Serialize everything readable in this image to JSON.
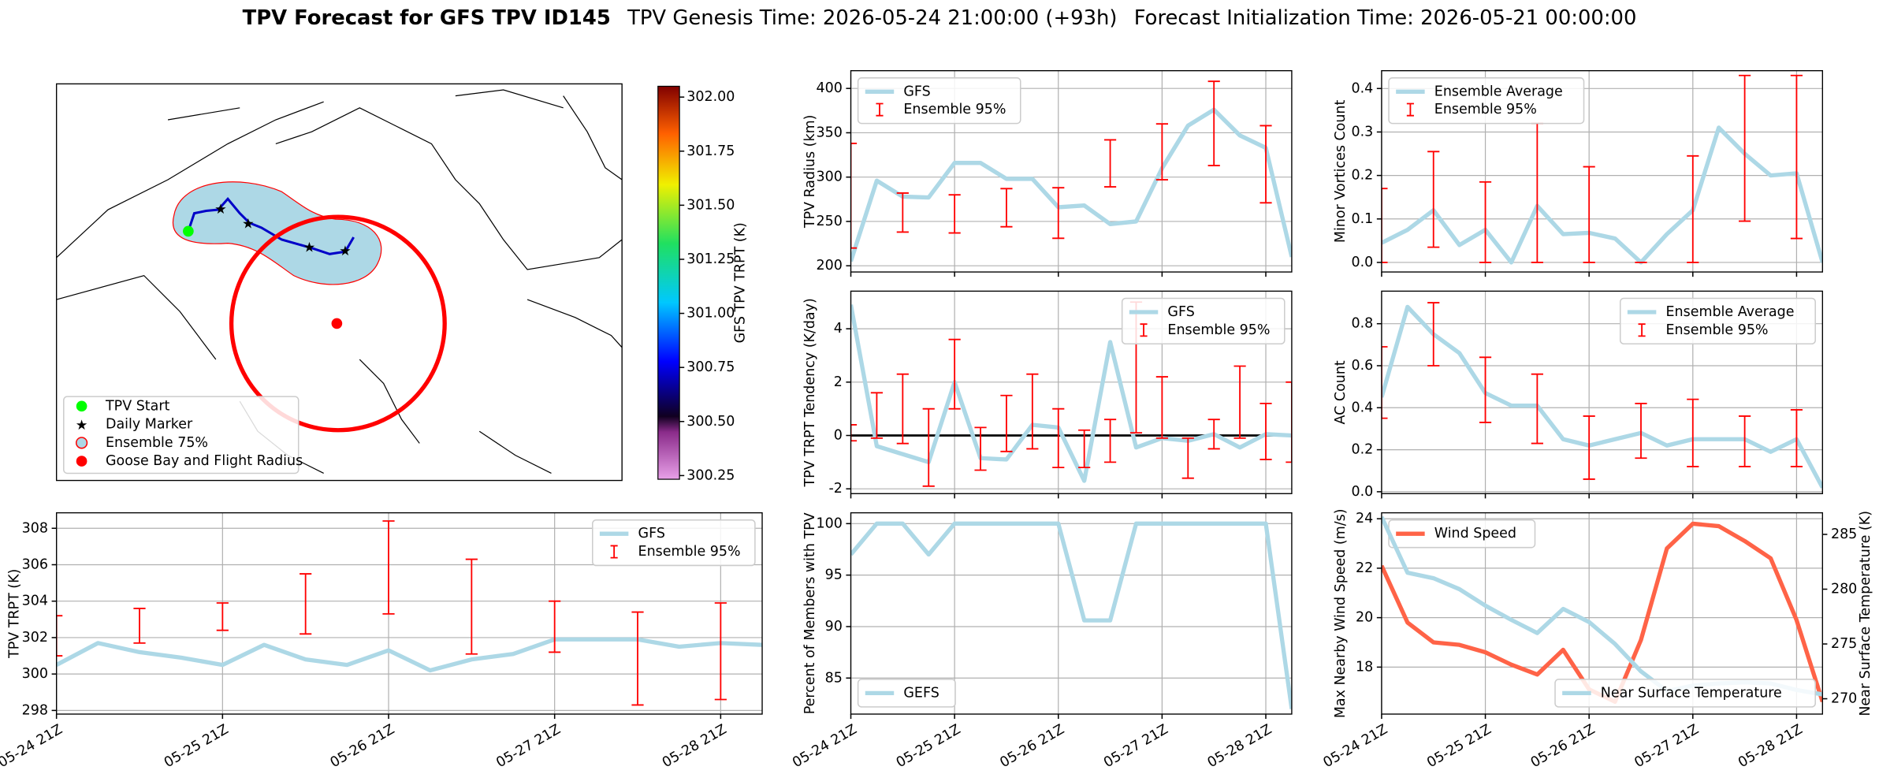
{
  "suptitle": {
    "bold": "TPV Forecast for GFS TPV ID145",
    "genesis": "TPV Genesis Time: 2026-05-24 21:00:00 (+93h)",
    "init": "Forecast Initialization Time: 2026-05-21 00:00:00"
  },
  "chart_data": [
    {
      "type": "map",
      "legend": [
        {
          "name": "TPV Start",
          "color": "#00ff00"
        },
        {
          "name": "Daily Marker",
          "color": "#ff00ff"
        },
        {
          "name": "Ensemble 75%",
          "color": "#add8e6"
        },
        {
          "name": "Goose Bay and Flight Radius",
          "color": "#ff0000"
        }
      ],
      "colorbar": {
        "label": "GFS TPV TRPT (K)",
        "lim": [
          300.233,
          302.05
        ],
        "ticks": [
          300.25,
          {
            "value": 300.5,
            "label": "300.50"
          },
          300.75,
          {
            "value": 301,
            "label": "301.00"
          },
          301.25,
          {
            "value": 301.5,
            "label": "301.50"
          },
          301.75,
          {
            "value": 302,
            "label": "302.00"
          }
        ]
      }
    },
    {
      "type": "line",
      "ylabel": "TPV Radius (km)",
      "categories": [
        "05-24 21Z",
        null,
        null,
        null,
        "05-25 21Z",
        null,
        null,
        null,
        "05-26 21Z",
        null,
        null,
        null,
        "05-27 21Z",
        null,
        null,
        null,
        "05-28 21Z",
        null
      ],
      "xtick_labels": false,
      "ylim": [
        193,
        420
      ],
      "yticks": [
        200,
        250,
        300,
        350,
        400
      ],
      "legend": "upper left",
      "series": [
        {
          "name": "GFS",
          "color": "#add8e6",
          "values": [
            205,
            296,
            278,
            277,
            316,
            316,
            298,
            298,
            266,
            268,
            247,
            250,
            310,
            358,
            376,
            347,
            333,
            210
          ]
        }
      ],
      "error": {
        "name": "Ensemble 95%",
        "color": "#ff0000",
        "low": [
          220,
          null,
          238,
          null,
          237,
          null,
          244,
          null,
          231,
          null,
          289,
          null,
          297,
          null,
          313,
          null,
          271,
          null
        ],
        "high": [
          338,
          null,
          282,
          null,
          280,
          null,
          287,
          null,
          288,
          null,
          342,
          null,
          360,
          null,
          408,
          null,
          358,
          null
        ]
      }
    },
    {
      "type": "line",
      "ylabel": "Minor Vortices Count",
      "categories": [
        "05-24 21Z",
        null,
        null,
        null,
        "05-25 21Z",
        null,
        null,
        null,
        "05-26 21Z",
        null,
        null,
        null,
        "05-27 21Z",
        null,
        null,
        null,
        "05-28 21Z",
        null
      ],
      "xtick_labels": false,
      "ylim": [
        -0.022,
        0.441
      ],
      "yticks": [
        {
          "value": 0,
          "label": "0.0"
        },
        0.1,
        0.2,
        0.3,
        0.4
      ],
      "legend": "upper left",
      "series": [
        {
          "name": "Ensemble Average",
          "color": "#add8e6",
          "values": [
            0.045,
            0.075,
            0.12,
            0.04,
            0.075,
            0.0,
            0.13,
            0.065,
            0.068,
            0.055,
            0.0,
            0.065,
            0.12,
            0.31,
            0.25,
            0.2,
            0.205,
            0.0
          ]
        }
      ],
      "error": {
        "name": "Ensemble 95%",
        "color": "#ff0000",
        "low": [
          0.0,
          null,
          0.035,
          null,
          0.0,
          null,
          0.0,
          null,
          0.0,
          null,
          0.0,
          null,
          0.0,
          null,
          0.095,
          null,
          0.055,
          null
        ],
        "high": [
          0.17,
          null,
          0.255,
          null,
          0.185,
          null,
          0.32,
          null,
          0.22,
          null,
          0.0,
          null,
          0.245,
          null,
          0.43,
          null,
          0.43,
          null
        ]
      }
    },
    {
      "type": "line",
      "ylabel": "TPV TRPT Tendency (K/day)",
      "categories": [
        "05-24 21Z",
        null,
        null,
        null,
        "05-25 21Z",
        null,
        null,
        null,
        "05-26 21Z",
        null,
        null,
        null,
        "05-27 21Z",
        null,
        null,
        null,
        "05-28 21Z",
        null
      ],
      "xtick_labels": false,
      "ylim": [
        -2.18,
        5.41
      ],
      "yticks": [
        -2,
        0,
        2,
        4
      ],
      "legend": "upper right",
      "hline": 0,
      "series": [
        {
          "name": "GFS",
          "color": "#add8e6",
          "values": [
            4.9,
            -0.4,
            -0.7,
            -1.0,
            2.0,
            -0.85,
            -0.9,
            0.4,
            0.3,
            -1.7,
            3.5,
            -0.45,
            -0.1,
            -0.2,
            0.05,
            -0.45,
            0.05,
            0.0
          ]
        }
      ],
      "error": {
        "name": "Ensemble 95%",
        "color": "#ff0000",
        "low": [
          -0.2,
          -0.1,
          -0.3,
          -1.9,
          1.0,
          -1.3,
          -0.6,
          -0.5,
          -1.2,
          -1.2,
          -1.0,
          0.1,
          -0.1,
          -1.6,
          -0.5,
          -0.1,
          -0.9,
          -1.0
        ],
        "high": [
          0.4,
          1.6,
          2.3,
          1.0,
          3.6,
          0.3,
          1.5,
          2.3,
          1.0,
          0.2,
          0.6,
          5.0,
          2.2,
          -0.1,
          0.6,
          2.6,
          1.2,
          2.0
        ]
      }
    },
    {
      "type": "line",
      "ylabel": "AC Count",
      "categories": [
        "05-24 21Z",
        null,
        null,
        null,
        "05-25 21Z",
        null,
        null,
        null,
        "05-26 21Z",
        null,
        null,
        null,
        "05-27 21Z",
        null,
        null,
        null,
        "05-28 21Z",
        null
      ],
      "xtick_labels": false,
      "ylim": [
        -0.009,
        0.955
      ],
      "yticks": [
        {
          "value": 0,
          "label": "0.0"
        },
        0.2,
        0.4,
        0.6,
        0.8
      ],
      "legend": "upper right",
      "series": [
        {
          "name": "Ensemble Average",
          "color": "#add8e6",
          "values": [
            0.45,
            0.88,
            0.75,
            0.66,
            0.47,
            0.41,
            0.41,
            0.25,
            0.22,
            0.25,
            0.28,
            0.22,
            0.25,
            0.25,
            0.25,
            0.19,
            0.25,
            0.02
          ]
        }
      ],
      "error": {
        "name": "Ensemble 95%",
        "color": "#ff0000",
        "low": [
          0.35,
          null,
          0.6,
          null,
          0.33,
          null,
          0.23,
          null,
          0.06,
          null,
          0.16,
          null,
          0.12,
          null,
          0.12,
          null,
          0.12,
          null
        ],
        "high": [
          0.69,
          null,
          0.9,
          null,
          0.64,
          null,
          0.56,
          null,
          0.36,
          null,
          0.42,
          null,
          0.44,
          null,
          0.36,
          null,
          0.39,
          null
        ]
      }
    },
    {
      "type": "line",
      "ylabel": "TPV TRPT (K)",
      "categories": [
        "05-24 21Z",
        null,
        null,
        null,
        "05-25 21Z",
        null,
        null,
        null,
        "05-26 21Z",
        null,
        null,
        null,
        "05-27 21Z",
        null,
        null,
        null,
        "05-28 21Z",
        null
      ],
      "xtick_labels": true,
      "ylim": [
        297.8,
        308.85
      ],
      "yticks": [
        298,
        300,
        302,
        304,
        306,
        308
      ],
      "legend": "upper right",
      "series": [
        {
          "name": "GFS",
          "color": "#add8e6",
          "values": [
            300.5,
            301.7,
            301.2,
            300.9,
            300.5,
            301.6,
            300.8,
            300.5,
            301.3,
            300.2,
            300.8,
            301.1,
            301.9,
            301.9,
            301.9,
            301.5,
            301.7,
            301.6
          ]
        }
      ],
      "error": {
        "name": "Ensemble 95%",
        "color": "#ff0000",
        "low": [
          301,
          null,
          301.7,
          null,
          302.4,
          null,
          302.2,
          null,
          303.3,
          null,
          301.1,
          null,
          301.2,
          null,
          298.3,
          null,
          298.6,
          null
        ],
        "high": [
          303.2,
          null,
          303.6,
          null,
          303.9,
          null,
          305.5,
          null,
          308.4,
          null,
          306.3,
          null,
          304.0,
          null,
          303.4,
          null,
          303.9,
          null
        ]
      }
    },
    {
      "type": "line",
      "ylabel": "Percent of Members with TPV",
      "categories": [
        "05-24 21Z",
        null,
        null,
        null,
        "05-25 21Z",
        null,
        null,
        null,
        "05-26 21Z",
        null,
        null,
        null,
        "05-27 21Z",
        null,
        null,
        null,
        "05-28 21Z",
        null
      ],
      "xtick_labels": true,
      "ylim": [
        81.5,
        101.05
      ],
      "yticks": [
        85,
        90,
        95,
        100
      ],
      "legend": "lower left",
      "series": [
        {
          "name": "GEFS",
          "color": "#add8e6",
          "values": [
            97,
            100,
            100,
            97,
            100,
            100,
            100,
            100,
            100,
            90.6,
            90.6,
            100,
            100,
            100,
            100,
            100,
            100,
            82
          ]
        }
      ]
    },
    {
      "type": "line",
      "ylabel": "Max Nearby Wind Speed (m/s)",
      "ylabel_color": "#ff6347",
      "y2label": "Near Surface Temperature (K)",
      "y2label_color": "#4169e1",
      "categories": [
        "05-24 21Z",
        null,
        null,
        null,
        "05-25 21Z",
        null,
        null,
        null,
        "05-26 21Z",
        null,
        null,
        null,
        "05-27 21Z",
        null,
        null,
        null,
        "05-28 21Z",
        null
      ],
      "xtick_labels": true,
      "ylim": [
        16.1,
        24.24
      ],
      "yticks": [
        18,
        20,
        22,
        24
      ],
      "y2lim": [
        268.6,
        286.97
      ],
      "y2ticks": [
        270,
        275,
        280,
        285
      ],
      "series": [
        {
          "name": "Wind Speed",
          "color": "#ff6347",
          "legend": "upper left",
          "values": [
            22.1,
            19.8,
            19.0,
            18.9,
            18.6,
            18.1,
            17.7,
            18.7,
            17.1,
            16.6,
            19.1,
            22.8,
            23.8,
            23.7,
            23.1,
            22.4,
            19.9,
            16.6
          ]
        },
        {
          "name": "Near Surface Temperature",
          "color": "#add8e6",
          "axis": "y2",
          "legend": "lower right",
          "values": [
            286.6,
            281.5,
            281.0,
            280.0,
            278.5,
            277.2,
            276.0,
            278.2,
            277.0,
            275.0,
            272.5,
            270.7,
            271.2,
            271.4,
            271.5,
            271.4,
            270.8,
            270.4
          ]
        }
      ]
    }
  ]
}
